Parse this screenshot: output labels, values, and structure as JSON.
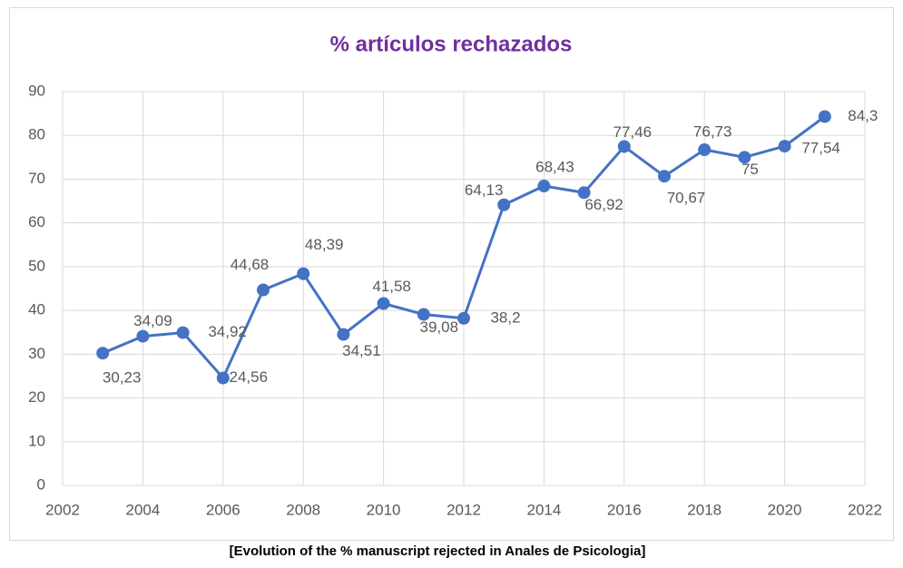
{
  "chart_data": {
    "type": "line",
    "title": "% artículos rechazados",
    "caption": "[Evolution of the % manuscript rejected in Anales de Psicologia]",
    "x": [
      2003,
      2004,
      2005,
      2006,
      2007,
      2008,
      2009,
      2010,
      2011,
      2012,
      2013,
      2014,
      2015,
      2016,
      2017,
      2018,
      2019,
      2020,
      2021
    ],
    "series": [
      {
        "name": "% artículos rechazados",
        "color": "#4472c4",
        "values": [
          30.23,
          34.09,
          34.92,
          24.56,
          44.68,
          48.39,
          34.51,
          41.58,
          39.08,
          38.2,
          64.13,
          68.43,
          66.92,
          77.46,
          70.67,
          76.73,
          75,
          77.54,
          84.3
        ],
        "value_labels": [
          "30,23",
          "34,09",
          "34,92",
          "24,56",
          "44,68",
          "48,39",
          "34,51",
          "41,58",
          "39,08",
          "38,2",
          "64,13",
          "68,43",
          "66,92",
          "77,46",
          "70,67",
          "76,73",
          "75",
          "77,54",
          "84,3"
        ]
      }
    ],
    "xlim": [
      2002,
      2022
    ],
    "xticks": [
      2002,
      2004,
      2006,
      2008,
      2010,
      2012,
      2014,
      2016,
      2018,
      2020,
      2022
    ],
    "ylim": [
      0,
      90
    ],
    "yticks": [
      0,
      10,
      20,
      30,
      40,
      50,
      60,
      70,
      80,
      90
    ],
    "grid": true
  }
}
